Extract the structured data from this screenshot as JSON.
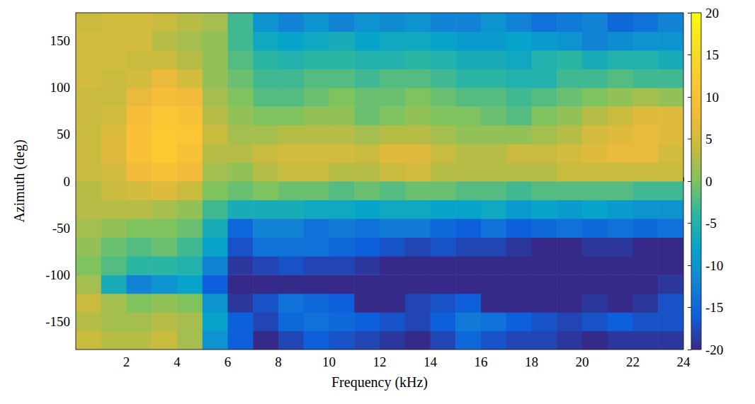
{
  "chart_data": {
    "type": "heatmap",
    "x_label": "Frequency (kHz)",
    "y_label": "Azimuth (deg)",
    "x": [
      0.5,
      1.5,
      2.5,
      3.5,
      4.5,
      5.5,
      6.5,
      7.5,
      8.5,
      9.5,
      10.5,
      11.5,
      12.5,
      13.5,
      14.5,
      15.5,
      16.5,
      17.5,
      18.5,
      19.5,
      20.5,
      21.5,
      22.5,
      23.5
    ],
    "y": [
      -170,
      -150,
      -130,
      -110,
      -90,
      -70,
      -50,
      -30,
      -10,
      10,
      30,
      50,
      70,
      90,
      110,
      130,
      150,
      170
    ],
    "values": [
      [
        4,
        3,
        3,
        4,
        2,
        -10,
        -16,
        -20,
        -18,
        -16,
        -17,
        -18,
        -19,
        -20,
        -18,
        -15,
        -17,
        -18,
        -18,
        -19,
        -20,
        -19,
        -19,
        -19
      ],
      [
        3,
        2,
        2,
        3,
        2,
        -8,
        -16,
        -18,
        -15,
        -14,
        -15,
        -16,
        -17,
        -18,
        -16,
        -13,
        -14,
        -16,
        -17,
        -18,
        -17,
        -16,
        -17,
        -17
      ],
      [
        4,
        2,
        0,
        1,
        0,
        -10,
        -19,
        -17,
        -14,
        -15,
        -16,
        -20,
        -20,
        -18,
        -17,
        -16,
        -20,
        -20,
        -20,
        -20,
        -19,
        -20,
        -19,
        -17
      ],
      [
        2,
        -6,
        -12,
        -10,
        -8,
        -16,
        -20,
        -20,
        -20,
        -20,
        -20,
        -20,
        -20,
        -20,
        -20,
        -20,
        -20,
        -20,
        -20,
        -20,
        -20,
        -20,
        -20,
        -19
      ],
      [
        0,
        -2,
        -4,
        -4,
        -5,
        -12,
        -19,
        -18,
        -17,
        -18,
        -18,
        -19,
        -20,
        -20,
        -20,
        -20,
        -20,
        -20,
        -20,
        -20,
        -20,
        -20,
        -20,
        -20
      ],
      [
        1,
        -1,
        -2,
        -1,
        -3,
        -8,
        -17,
        -14,
        -14,
        -14,
        -15,
        -16,
        -17,
        -18,
        -17,
        -18,
        -18,
        -19,
        -20,
        -20,
        -19,
        -19,
        -20,
        -20
      ],
      [
        2,
        1,
        0,
        0,
        -1,
        -6,
        -15,
        -12,
        -12,
        -14,
        -13,
        -14,
        -13,
        -13,
        -15,
        -16,
        -14,
        -16,
        -15,
        -14,
        -15,
        -14,
        -15,
        -14
      ],
      [
        3,
        3,
        3,
        2,
        1,
        -3,
        -6,
        -6,
        -6,
        -7,
        -7,
        -8,
        -7,
        -7,
        -8,
        -8,
        -7,
        -9,
        -8,
        -9,
        -8,
        -9,
        -10,
        -10
      ],
      [
        3,
        4,
        5,
        6,
        4,
        0,
        -1,
        0,
        -1,
        -1,
        -2,
        -1,
        -2,
        -1,
        -1,
        -2,
        -2,
        -3,
        -2,
        -2,
        -2,
        -2,
        -3,
        -3
      ],
      [
        4,
        5,
        8,
        10,
        8,
        2,
        1,
        3,
        4,
        4,
        3,
        3,
        4,
        5,
        3,
        3,
        3,
        3,
        3,
        4,
        4,
        4,
        4,
        4
      ],
      [
        4,
        6,
        10,
        12,
        10,
        3,
        3,
        4,
        5,
        5,
        5,
        4,
        6,
        6,
        4,
        3,
        3,
        4,
        4,
        5,
        6,
        7,
        7,
        5
      ],
      [
        4,
        6,
        10,
        12,
        11,
        4,
        2,
        2,
        3,
        3,
        3,
        2,
        3,
        3,
        2,
        1,
        1,
        1,
        2,
        3,
        5,
        6,
        7,
        6
      ],
      [
        4,
        5,
        9,
        11,
        10,
        3,
        1,
        0,
        0,
        1,
        1,
        -1,
        0,
        1,
        0,
        0,
        -1,
        -2,
        0,
        1,
        3,
        4,
        6,
        6
      ],
      [
        4,
        4,
        7,
        9,
        8,
        2,
        0,
        -2,
        -2,
        -1,
        0,
        -1,
        -1,
        0,
        -1,
        -2,
        -2,
        -3,
        -2,
        -1,
        0,
        1,
        2,
        1
      ],
      [
        5,
        4,
        5,
        7,
        5,
        1,
        -1,
        -3,
        -3,
        -2,
        -2,
        -3,
        -2,
        -2,
        -3,
        -4,
        -4,
        -5,
        -5,
        -3,
        -3,
        -2,
        -3,
        -3
      ],
      [
        5,
        5,
        4,
        4,
        3,
        1,
        -2,
        -4,
        -5,
        -4,
        -4,
        -5,
        -5,
        -4,
        -5,
        -6,
        -6,
        -7,
        -5,
        -4,
        -6,
        -5,
        -5,
        -6
      ],
      [
        5,
        5,
        5,
        3,
        2,
        1,
        -3,
        -7,
        -8,
        -7,
        -6,
        -8,
        -7,
        -7,
        -8,
        -9,
        -9,
        -8,
        -9,
        -10,
        -12,
        -11,
        -10,
        -10
      ],
      [
        4,
        5,
        5,
        4,
        3,
        2,
        -3,
        -10,
        -12,
        -10,
        -12,
        -10,
        -11,
        -10,
        -12,
        -12,
        -10,
        -12,
        -14,
        -13,
        -12,
        -15,
        -14,
        -12
      ]
    ],
    "xlim": [
      0,
      24
    ],
    "xticks": [
      2,
      4,
      6,
      8,
      10,
      12,
      14,
      16,
      18,
      20,
      22,
      24
    ],
    "ylim": [
      -180,
      180
    ],
    "yticks": [
      -150,
      -100,
      -50,
      0,
      50,
      100,
      150
    ],
    "colorbar": {
      "range": [
        -20,
        20
      ],
      "ticks": [
        -20,
        -15,
        -10,
        -5,
        0,
        5,
        10,
        15,
        20
      ]
    }
  }
}
